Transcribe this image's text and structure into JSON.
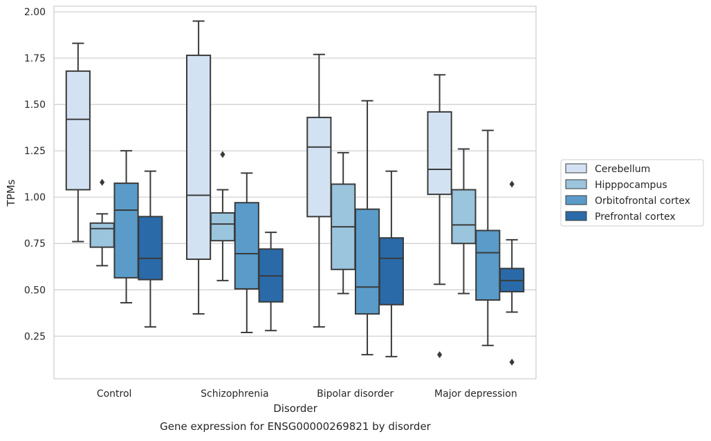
{
  "chart_data": {
    "type": "box",
    "title": "",
    "caption": "Gene expression for ENSG00000269821 by disorder",
    "xlabel": "Disorder",
    "ylabel": "TPMs",
    "ylim": [
      0.02,
      2.03
    ],
    "yticks": [
      "0.25",
      "0.50",
      "0.75",
      "1.00",
      "1.25",
      "1.50",
      "1.75",
      "2.00"
    ],
    "grid": "horizontal",
    "legend_position": "right",
    "categories": [
      "Control",
      "Schizophrenia",
      "Bipolar disorder",
      "Major depression"
    ],
    "series": [
      {
        "name": "Cerebellum",
        "color": "#d3e2f2",
        "boxes": [
          {
            "whisker_low": 0.76,
            "q1": 1.04,
            "median": 1.42,
            "q3": 1.68,
            "whisker_high": 1.83,
            "outliers": []
          },
          {
            "whisker_low": 0.37,
            "q1": 0.665,
            "median": 1.01,
            "q3": 1.765,
            "whisker_high": 1.95,
            "outliers": []
          },
          {
            "whisker_low": 0.3,
            "q1": 0.895,
            "median": 1.27,
            "q3": 1.43,
            "whisker_high": 1.77,
            "outliers": []
          },
          {
            "whisker_low": 0.53,
            "q1": 1.015,
            "median": 1.15,
            "q3": 1.46,
            "whisker_high": 1.66,
            "outliers": [
              0.15
            ]
          }
        ]
      },
      {
        "name": "Hipppocampus",
        "color": "#9bc4dd",
        "boxes": [
          {
            "whisker_low": 0.63,
            "q1": 0.73,
            "median": 0.83,
            "q3": 0.86,
            "whisker_high": 0.91,
            "outliers": [
              1.08
            ]
          },
          {
            "whisker_low": 0.55,
            "q1": 0.765,
            "median": 0.855,
            "q3": 0.915,
            "whisker_high": 1.04,
            "outliers": [
              1.23
            ]
          },
          {
            "whisker_low": 0.48,
            "q1": 0.61,
            "median": 0.84,
            "q3": 1.07,
            "whisker_high": 1.24,
            "outliers": []
          },
          {
            "whisker_low": 0.48,
            "q1": 0.75,
            "median": 0.85,
            "q3": 1.04,
            "whisker_high": 1.26,
            "outliers": []
          }
        ]
      },
      {
        "name": "Orbitofrontal cortex",
        "color": "#5a9bc9",
        "boxes": [
          {
            "whisker_low": 0.43,
            "q1": 0.565,
            "median": 0.93,
            "q3": 1.075,
            "whisker_high": 1.25,
            "outliers": []
          },
          {
            "whisker_low": 0.27,
            "q1": 0.505,
            "median": 0.695,
            "q3": 0.97,
            "whisker_high": 1.13,
            "outliers": []
          },
          {
            "whisker_low": 0.15,
            "q1": 0.37,
            "median": 0.515,
            "q3": 0.935,
            "whisker_high": 1.52,
            "outliers": []
          },
          {
            "whisker_low": 0.2,
            "q1": 0.445,
            "median": 0.7,
            "q3": 0.82,
            "whisker_high": 1.36,
            "outliers": []
          }
        ]
      },
      {
        "name": "Prefrontal cortex",
        "color": "#2a6aa8",
        "boxes": [
          {
            "whisker_low": 0.3,
            "q1": 0.555,
            "median": 0.67,
            "q3": 0.895,
            "whisker_high": 1.14,
            "outliers": []
          },
          {
            "whisker_low": 0.28,
            "q1": 0.435,
            "median": 0.575,
            "q3": 0.72,
            "whisker_high": 0.81,
            "outliers": []
          },
          {
            "whisker_low": 0.14,
            "q1": 0.42,
            "median": 0.67,
            "q3": 0.78,
            "whisker_high": 1.14,
            "outliers": []
          },
          {
            "whisker_low": 0.38,
            "q1": 0.49,
            "median": 0.55,
            "q3": 0.615,
            "whisker_high": 0.77,
            "outliers": [
              0.11,
              1.07
            ]
          }
        ]
      }
    ]
  }
}
